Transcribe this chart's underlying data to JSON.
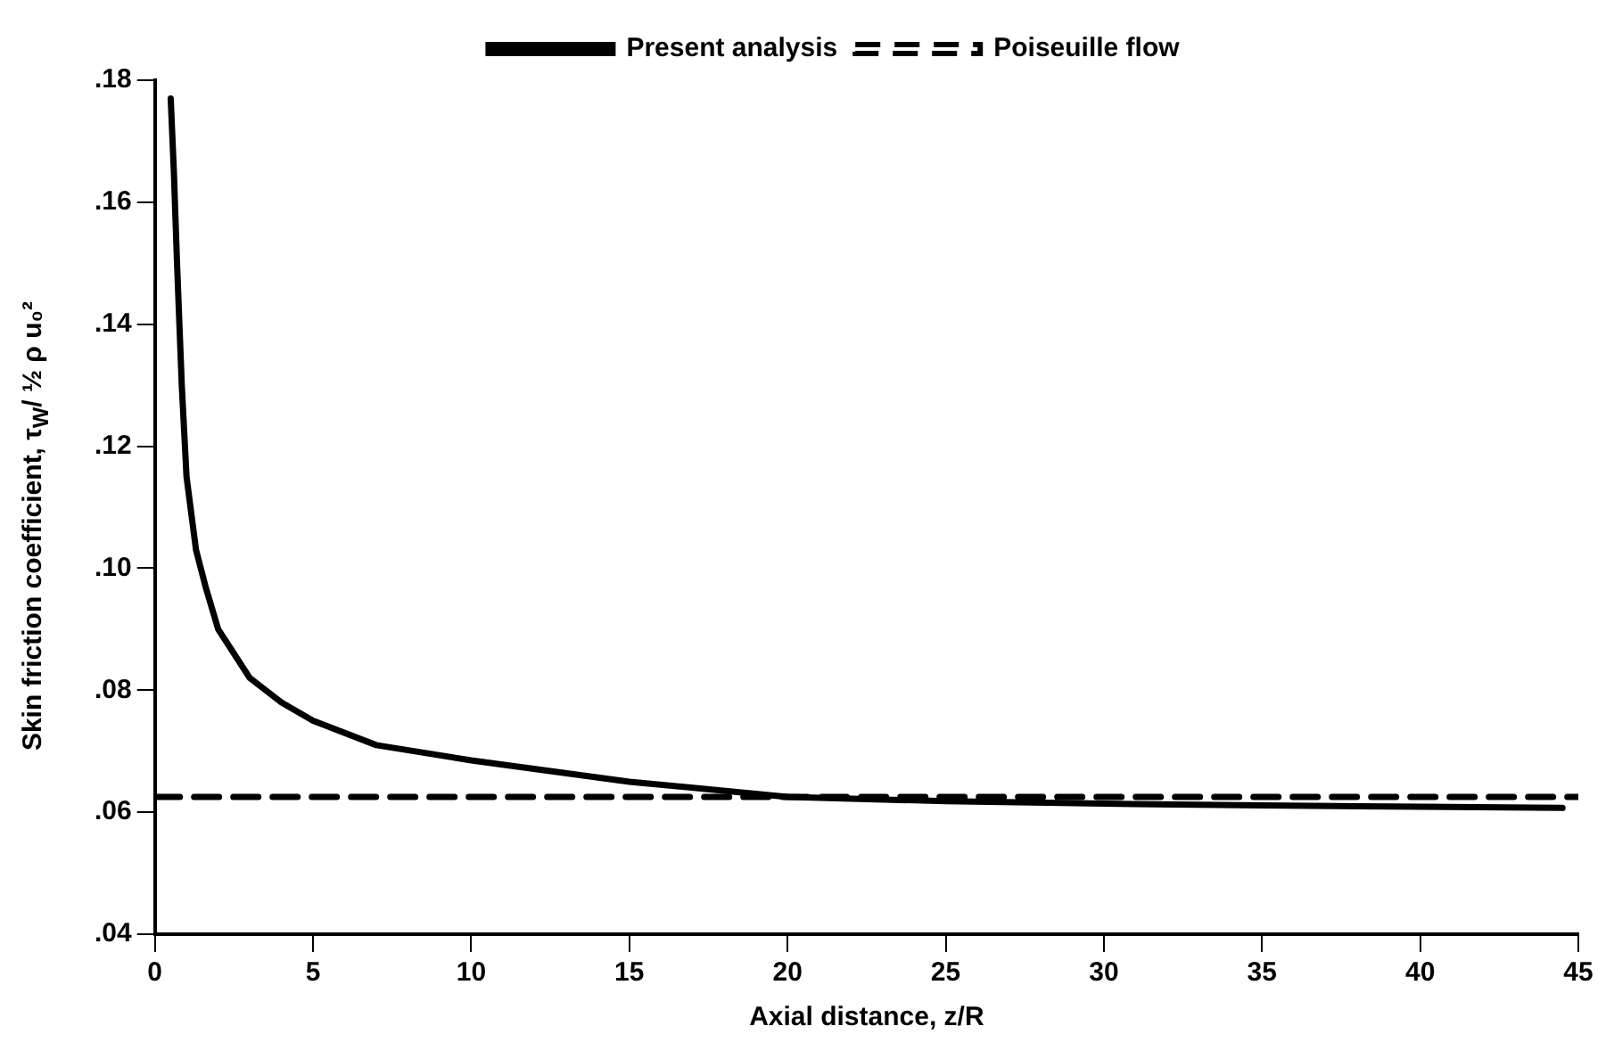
{
  "chart_data": {
    "type": "line",
    "xlabel": "Axial distance, z/R",
    "ylabel": "Skin friction coefficient, τ$_{W}$/ ½ ρ u₀²",
    "xlim": [
      0,
      45
    ],
    "xticks": [
      0,
      5,
      10,
      15,
      20,
      25,
      30,
      35,
      40,
      45
    ],
    "ylim": [
      0.04,
      0.18
    ],
    "yticks": [
      {
        "value": 0.04,
        "label": ".04"
      },
      {
        "value": 0.06,
        "label": ".06"
      },
      {
        "value": 0.08,
        "label": ".08"
      },
      {
        "value": 0.1,
        "label": ".10"
      },
      {
        "value": 0.12,
        "label": ".12"
      },
      {
        "value": 0.14,
        "label": ".14"
      },
      {
        "value": 0.16,
        "label": ".16"
      },
      {
        "value": 0.18,
        "label": ".18"
      }
    ],
    "grid": false,
    "legend": "top",
    "marker": "none",
    "series": [
      {
        "name": "Present analysis",
        "color": "#000000",
        "line_style": "solid",
        "x": [
          0.5,
          0.6,
          0.7,
          0.85,
          1.0,
          1.3,
          1.6,
          2,
          3,
          4,
          5,
          7,
          10,
          15,
          20,
          25,
          30,
          35,
          40,
          44.5
        ],
        "values": [
          0.177,
          0.165,
          0.15,
          0.13,
          0.115,
          0.103,
          0.097,
          0.09,
          0.082,
          0.078,
          0.075,
          0.071,
          0.0685,
          0.065,
          0.0625,
          0.0618,
          0.0614,
          0.0611,
          0.0609,
          0.0607
        ]
      },
      {
        "name": "Poiseuille flow",
        "color": "#000000",
        "line_style": "dashed",
        "x": [
          0,
          45
        ],
        "values": [
          0.0625,
          0.0625
        ]
      }
    ]
  }
}
